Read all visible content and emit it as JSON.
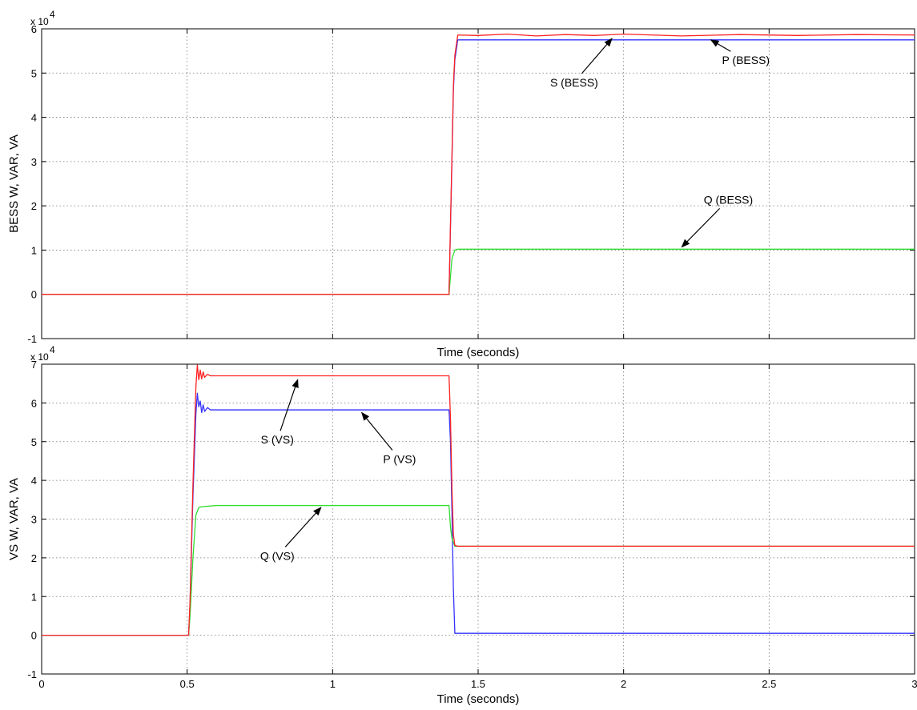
{
  "chart_data": [
    {
      "type": "line",
      "ylabel": "BESS W, VAR, VA",
      "xlabel": "Time (seconds)",
      "y_exponent_base": "x 10",
      "y_exponent": "4",
      "xlim": [
        0,
        3
      ],
      "ylim": [
        -1,
        6
      ],
      "x_ticks": [
        0,
        0.5,
        1,
        1.5,
        2,
        2.5,
        3
      ],
      "y_ticks": [
        -1,
        0,
        1,
        2,
        3,
        4,
        5,
        6
      ],
      "y_tick_labels": [
        "-1",
        "0",
        "1",
        "2",
        "3",
        "4",
        "5",
        "6"
      ],
      "grid": true,
      "series": [
        {
          "color": "#3333ff",
          "x": [
            0,
            1.4,
            1.405,
            1.41,
            1.415,
            1.42,
            1.43,
            3.0
          ],
          "y": [
            0,
            0,
            1.5,
            3.0,
            4.6,
            5.3,
            5.75,
            5.75
          ]
        },
        {
          "color": "#33dd33",
          "x": [
            0,
            1.4,
            1.405,
            1.41,
            1.42,
            1.43,
            3.0
          ],
          "y": [
            0,
            0,
            0.4,
            0.8,
            1.0,
            1.02,
            1.02
          ]
        },
        {
          "color": "#ff2222",
          "x": [
            0,
            1.4,
            1.405,
            1.41,
            1.415,
            1.42,
            1.43,
            1.5,
            1.6,
            1.7,
            1.8,
            1.9,
            2.0,
            2.2,
            2.4,
            2.6,
            2.8,
            3.0
          ],
          "y": [
            0,
            0,
            1.6,
            3.1,
            4.7,
            5.4,
            5.86,
            5.85,
            5.88,
            5.84,
            5.87,
            5.85,
            5.88,
            5.84,
            5.87,
            5.85,
            5.87,
            5.86
          ]
        }
      ],
      "annotations": [
        {
          "text": "S (BESS)",
          "x": 1.83,
          "y": 4.7,
          "ax": 1.96,
          "ay": 5.78
        },
        {
          "text": "P (BESS)",
          "x": 2.42,
          "y": 5.2,
          "ax": 2.3,
          "ay": 5.75
        },
        {
          "text": "Q (BESS)",
          "x": 2.36,
          "y": 2.05,
          "ax": 2.2,
          "ay": 1.07
        }
      ]
    },
    {
      "type": "line",
      "ylabel": "VS W, VAR, VA",
      "xlabel": "Time (seconds)",
      "y_exponent_base": "x 10",
      "y_exponent": "4",
      "xlim": [
        0,
        3
      ],
      "ylim": [
        -1,
        7
      ],
      "x_ticks": [
        0,
        0.5,
        1,
        1.5,
        2,
        2.5,
        3
      ],
      "x_tick_labels": [
        "0",
        "0.5",
        "1",
        "1.5",
        "2",
        "2.5",
        "3"
      ],
      "y_ticks": [
        -1,
        0,
        1,
        2,
        3,
        4,
        5,
        6,
        7
      ],
      "y_tick_labels": [
        "-1",
        "0",
        "1",
        "2",
        "3",
        "4",
        "5",
        "6",
        "7"
      ],
      "grid": true,
      "series": [
        {
          "color": "#3333ff",
          "x": [
            0,
            0.505,
            0.51,
            0.52,
            0.53,
            0.535,
            0.54,
            0.545,
            0.55,
            0.555,
            0.56,
            0.57,
            0.58,
            0.6,
            1.4,
            1.405,
            1.41,
            1.415,
            1.42,
            1.43,
            3.0
          ],
          "y": [
            0,
            0,
            0.8,
            3.6,
            5.7,
            6.25,
            5.9,
            6.05,
            5.75,
            5.95,
            5.78,
            5.88,
            5.82,
            5.82,
            5.82,
            5.0,
            3.2,
            1.2,
            0.05,
            0.05,
            0.05
          ]
        },
        {
          "color": "#33dd33",
          "x": [
            0,
            0.505,
            0.51,
            0.52,
            0.53,
            0.54,
            0.55,
            0.6,
            1.4,
            1.405,
            1.41,
            1.42,
            1.43,
            3.0
          ],
          "y": [
            0,
            0,
            0.5,
            2.0,
            3.1,
            3.3,
            3.32,
            3.35,
            3.35,
            2.8,
            2.5,
            2.3,
            2.3,
            2.3
          ]
        },
        {
          "color": "#ff2222",
          "x": [
            0,
            0.505,
            0.51,
            0.52,
            0.53,
            0.535,
            0.54,
            0.545,
            0.55,
            0.555,
            0.56,
            0.57,
            0.58,
            0.6,
            1.4,
            1.405,
            1.41,
            1.415,
            1.42,
            1.43,
            3.0
          ],
          "y": [
            0,
            0,
            0.9,
            3.9,
            6.4,
            6.98,
            6.6,
            6.85,
            6.62,
            6.8,
            6.66,
            6.74,
            6.7,
            6.7,
            6.7,
            5.6,
            3.8,
            2.6,
            2.32,
            2.3,
            2.3
          ]
        }
      ],
      "annotations": [
        {
          "text": "S (VS)",
          "x": 0.81,
          "y": 4.95,
          "ax": 0.88,
          "ay": 6.6
        },
        {
          "text": "P (VS)",
          "x": 1.23,
          "y": 4.45,
          "ax": 1.1,
          "ay": 5.75
        },
        {
          "text": "Q (VS)",
          "x": 0.81,
          "y": 1.95,
          "ax": 0.96,
          "ay": 3.3
        }
      ]
    }
  ]
}
